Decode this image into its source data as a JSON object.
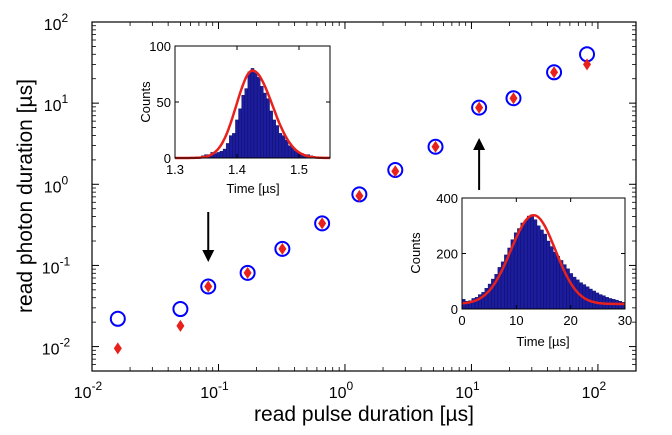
{
  "chart_data": [
    {
      "type": "scatter",
      "xscale": "log",
      "yscale": "log",
      "xlim": [
        0.01,
        200
      ],
      "ylim": [
        0.005,
        100
      ],
      "xlabel": "read pulse duration [µs]",
      "ylabel": "read photon duration [µs]",
      "x_ticks": [
        {
          "base": "10",
          "exp": "-2"
        },
        {
          "base": "10",
          "exp": "-1"
        },
        {
          "base": "10",
          "exp": "0"
        },
        {
          "base": "10",
          "exp": "1"
        },
        {
          "base": "10",
          "exp": "2"
        }
      ],
      "y_ticks": [
        {
          "base": "10",
          "exp": "-2"
        },
        {
          "base": "10",
          "exp": "-1"
        },
        {
          "base": "10",
          "exp": "0"
        },
        {
          "base": "10",
          "exp": "1"
        },
        {
          "base": "10",
          "exp": "2"
        }
      ],
      "grid": false,
      "colors": {
        "circle": "#0000ff",
        "diamond": "#e8211c",
        "arrow": "#000000"
      },
      "series": [
        {
          "marker": "open-circle",
          "x": [
            0.016,
            0.05,
            0.083,
            0.17,
            0.32,
            0.66,
            1.3,
            2.5,
            5.2,
            11.5,
            21.5,
            45,
            82
          ],
          "y": [
            0.022,
            0.029,
            0.055,
            0.081,
            0.16,
            0.33,
            0.75,
            1.5,
            2.9,
            8.8,
            11.5,
            24,
            40
          ]
        },
        {
          "marker": "filled-diamond",
          "x": [
            0.016,
            0.05,
            0.083,
            0.17,
            0.32,
            0.66,
            1.3,
            2.5,
            5.2,
            11.5,
            21.5,
            45,
            82
          ],
          "y": [
            0.0095,
            0.018,
            0.055,
            0.081,
            0.16,
            0.33,
            0.72,
            1.45,
            2.9,
            8.8,
            11.5,
            24,
            30
          ]
        }
      ],
      "annotations": [
        {
          "type": "arrow",
          "direction": "down",
          "points_to_x": 0.083
        },
        {
          "type": "arrow",
          "direction": "up",
          "points_to_x": 11.5
        }
      ]
    },
    {
      "type": "bar",
      "inset": "top-left",
      "xlabel": "Time [µs]",
      "ylabel": "Counts",
      "xlim": [
        1.3,
        1.55
      ],
      "ylim": [
        0,
        100
      ],
      "x_ticks": [
        "1.3",
        "1.4",
        "1.5"
      ],
      "y_ticks": [
        "0",
        "50",
        "100"
      ],
      "bin_width": 0.005,
      "bins_x": [
        1.32,
        1.325,
        1.33,
        1.335,
        1.34,
        1.345,
        1.35,
        1.355,
        1.36,
        1.365,
        1.37,
        1.375,
        1.38,
        1.385,
        1.39,
        1.395,
        1.4,
        1.405,
        1.41,
        1.415,
        1.42,
        1.425,
        1.43,
        1.435,
        1.44,
        1.445,
        1.45,
        1.455,
        1.46,
        1.465,
        1.47,
        1.475,
        1.48,
        1.485,
        1.49,
        1.495,
        1.5,
        1.505,
        1.51,
        1.515,
        1.52,
        1.525,
        1.53
      ],
      "bins_counts": [
        0,
        0,
        0,
        0,
        1,
        2,
        3,
        3,
        5,
        4,
        5,
        6,
        8,
        13,
        20,
        22,
        34,
        44,
        56,
        62,
        77,
        80,
        76,
        72,
        64,
        58,
        53,
        42,
        34,
        29,
        22,
        20,
        16,
        11,
        9,
        6,
        5,
        4,
        3,
        3,
        2,
        1,
        1
      ],
      "fit_curve": {
        "color": "#e8211c",
        "center": 1.425,
        "peak": 78
      }
    },
    {
      "type": "bar",
      "inset": "bottom-right",
      "xlabel": "Time [µs]",
      "ylabel": "Counts",
      "xlim": [
        0,
        30
      ],
      "ylim": [
        0,
        400
      ],
      "x_ticks": [
        "0",
        "10",
        "20",
        "30"
      ],
      "y_ticks": [
        "0",
        "200",
        "400"
      ],
      "bin_width": 0.6,
      "bins_x": [
        0.3,
        0.9,
        1.5,
        2.1,
        2.7,
        3.3,
        3.9,
        4.5,
        5.1,
        5.7,
        6.3,
        6.9,
        7.5,
        8.1,
        8.7,
        9.3,
        9.9,
        10.5,
        11.1,
        11.7,
        12.3,
        12.9,
        13.5,
        14.1,
        14.7,
        15.3,
        15.9,
        16.5,
        17.1,
        17.7,
        18.3,
        18.9,
        19.5,
        20.1,
        20.7,
        21.3,
        21.9,
        22.5,
        23.1,
        23.7,
        24.3,
        24.9,
        25.5,
        26.1,
        26.7,
        27.3,
        27.9,
        28.5,
        29.1,
        29.7
      ],
      "bins_counts": [
        35,
        28,
        30,
        38,
        42,
        52,
        60,
        75,
        90,
        108,
        125,
        150,
        170,
        195,
        220,
        250,
        275,
        290,
        310,
        318,
        335,
        340,
        322,
        300,
        285,
        270,
        245,
        225,
        205,
        190,
        175,
        160,
        145,
        128,
        115,
        105,
        95,
        88,
        80,
        72,
        65,
        58,
        52,
        48,
        42,
        38,
        35,
        32,
        28,
        24
      ],
      "fit_curve": {
        "color": "#e8211c",
        "center": 13.2,
        "peak": 320
      }
    }
  ]
}
